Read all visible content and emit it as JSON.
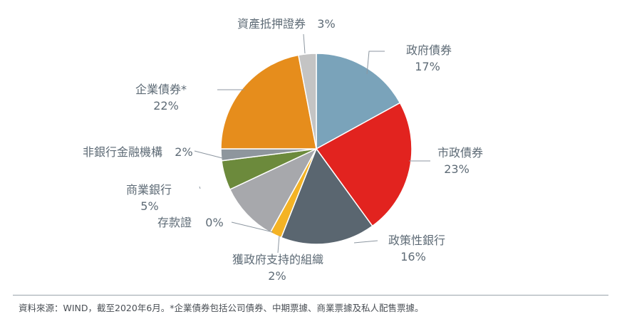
{
  "chart_data": {
    "type": "pie",
    "start": "top",
    "direction": "clockwise",
    "slices": [
      {
        "label": "政府債券",
        "value": 17,
        "value_label": "17%",
        "color": "#7aa3ba"
      },
      {
        "label": "市政債券",
        "value": 23,
        "value_label": "23%",
        "color": "#e2231f"
      },
      {
        "label": "政策性銀行",
        "value": 16,
        "value_label": "16%",
        "color": "#5a6670"
      },
      {
        "label": "獲政府支持的組織",
        "value": 2,
        "value_label": "2%",
        "color": "#f4b325"
      },
      {
        "label": "存款證",
        "value": 0,
        "value_label": "0%",
        "color": "#e0e0e0"
      },
      {
        "label": "商業銀行",
        "value": 10,
        "value_label": "",
        "color": "#a7a8ac"
      },
      {
        "label": "",
        "value": 5,
        "value_label": "5%",
        "color": "#6c8a3c"
      },
      {
        "label": "非銀行金融機構",
        "value": 2,
        "value_label": "2%",
        "color": "#8e969d"
      },
      {
        "label": "企業債券*",
        "value": 22,
        "value_label": "22%",
        "color": "#e68d1c"
      },
      {
        "label": "資產抵押證券",
        "value": 3,
        "value_label": "3%",
        "color": "#c4c4c4"
      }
    ]
  },
  "footer": {
    "source": "資料來源：WIND，截至2020年6月。*企業債券包括公司債券、中期票據、商業票據及私人配售票據。"
  }
}
